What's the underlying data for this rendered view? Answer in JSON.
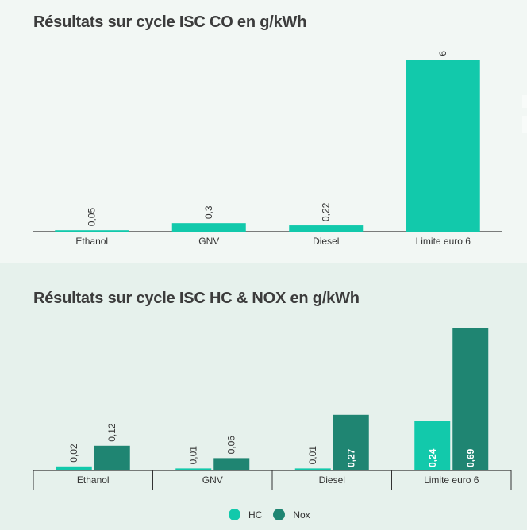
{
  "colors": {
    "hc": "#12c9ab",
    "nox": "#1f8572",
    "axis": "#333333"
  },
  "chart_data": [
    {
      "type": "bar",
      "title": "Résultats sur cycle ISC CO en g/kWh",
      "categories": [
        "Ethanol",
        "GNV",
        "Diesel",
        "Limite euro 6"
      ],
      "values": [
        0.05,
        0.3,
        0.22,
        6
      ],
      "value_labels": [
        "0,05",
        "0,3",
        "0,22",
        "6"
      ],
      "ylim": [
        0,
        6.1
      ],
      "grid": false,
      "legend": "none"
    },
    {
      "type": "bar",
      "title": "Résultats sur cycle ISC HC & NOX en g/kWh",
      "categories": [
        "Ethanol",
        "GNV",
        "Diesel",
        "Limite euro 6"
      ],
      "series": [
        {
          "name": "HC",
          "values": [
            0.02,
            0.01,
            0.01,
            0.24
          ],
          "labels": [
            "0,02",
            "0,01",
            "0,01",
            "0,24"
          ]
        },
        {
          "name": "Nox",
          "values": [
            0.12,
            0.06,
            0.27,
            0.69
          ],
          "labels": [
            "0,12",
            "0,06",
            "0,27",
            "0,69"
          ]
        }
      ],
      "ylim": [
        0,
        0.7
      ],
      "grid": false,
      "legend": "bottom-center"
    }
  ]
}
